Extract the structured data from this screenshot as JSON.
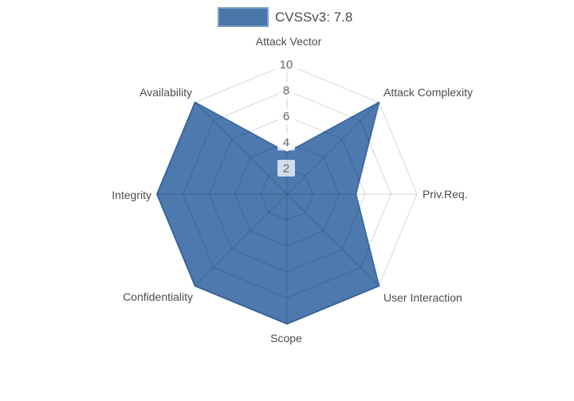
{
  "legend": {
    "label": "CVSSv3: 7.8",
    "swatch_fill": "#4a76a9",
    "swatch_border": "#7b9dc7"
  },
  "chart_data": {
    "type": "radar",
    "title": "",
    "categories": [
      "Attack Vector",
      "Attack Complexity",
      "Priv.Req.",
      "User Interaction",
      "Scope",
      "Confidentiality",
      "Integrity",
      "Availability"
    ],
    "series": [
      {
        "name": "CVSSv3: 7.8",
        "values": [
          3.2,
          10,
          5.3,
          10,
          10,
          10,
          10,
          10
        ]
      }
    ],
    "range": [
      0,
      10
    ],
    "ticks": [
      2,
      4,
      6,
      8,
      10
    ],
    "grid": "spider-web rings at every tick plus 8 radial spokes",
    "legend_position": "top-center",
    "colors": {
      "fill": "#4d79ae",
      "line": "#3e6da5",
      "grid_line": "rgba(0,0,0,0.16)",
      "axis_label": "#4d4d4d",
      "tick_text": "#696969",
      "tick_box": "rgba(255,255,255,0.75)"
    }
  }
}
